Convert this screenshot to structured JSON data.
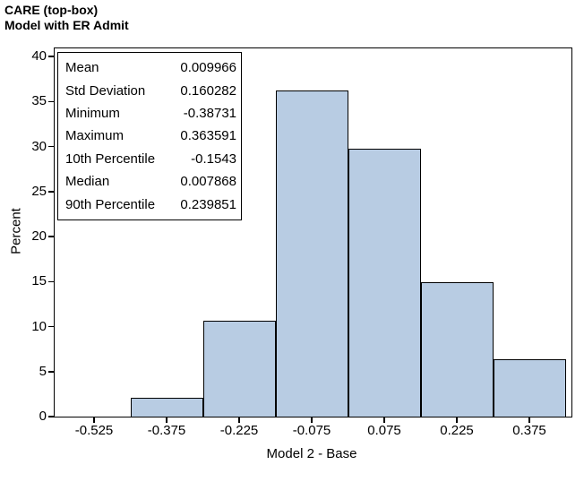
{
  "title": {
    "line1": "CARE (top-box)",
    "line2": "Model with ER Admit"
  },
  "stats_box": {
    "rows": [
      {
        "label": "Mean",
        "value": "0.009966"
      },
      {
        "label": "Std Deviation",
        "value": "0.160282"
      },
      {
        "label": "Minimum",
        "value": "-0.38731"
      },
      {
        "label": "Maximum",
        "value": "0.363591"
      },
      {
        "label": "10th Percentile",
        "value": "-0.1543"
      },
      {
        "label": "Median",
        "value": "0.007868"
      },
      {
        "label": "90th Percentile",
        "value": "0.239851"
      }
    ]
  },
  "chart_data": {
    "type": "bar",
    "subtype": "histogram",
    "title": "CARE (top-box) Model with ER Admit",
    "xlabel": "Model 2 - Base",
    "ylabel": "Percent",
    "bin_width": 0.15,
    "bin_centers": [
      -0.375,
      -0.225,
      -0.075,
      0.075,
      0.225,
      0.375
    ],
    "values": [
      2.13,
      10.64,
      36.17,
      29.79,
      14.89,
      6.38
    ],
    "x_tick_values": [
      -0.525,
      -0.375,
      -0.225,
      -0.075,
      0.075,
      0.225,
      0.375
    ],
    "x_tick_labels": [
      "-0.525",
      "-0.375",
      "-0.225",
      "-0.075",
      "0.075",
      "0.225",
      "0.375"
    ],
    "y_ticks": [
      0,
      5,
      10,
      15,
      20,
      25,
      30,
      35,
      40
    ],
    "ylim": [
      0,
      40
    ],
    "xlim": [
      -0.597,
      0.46
    ],
    "grid": false,
    "legend": "none",
    "bar_fill": "#b8cce3",
    "bar_border": "#000000",
    "frame_color": "#000000"
  }
}
